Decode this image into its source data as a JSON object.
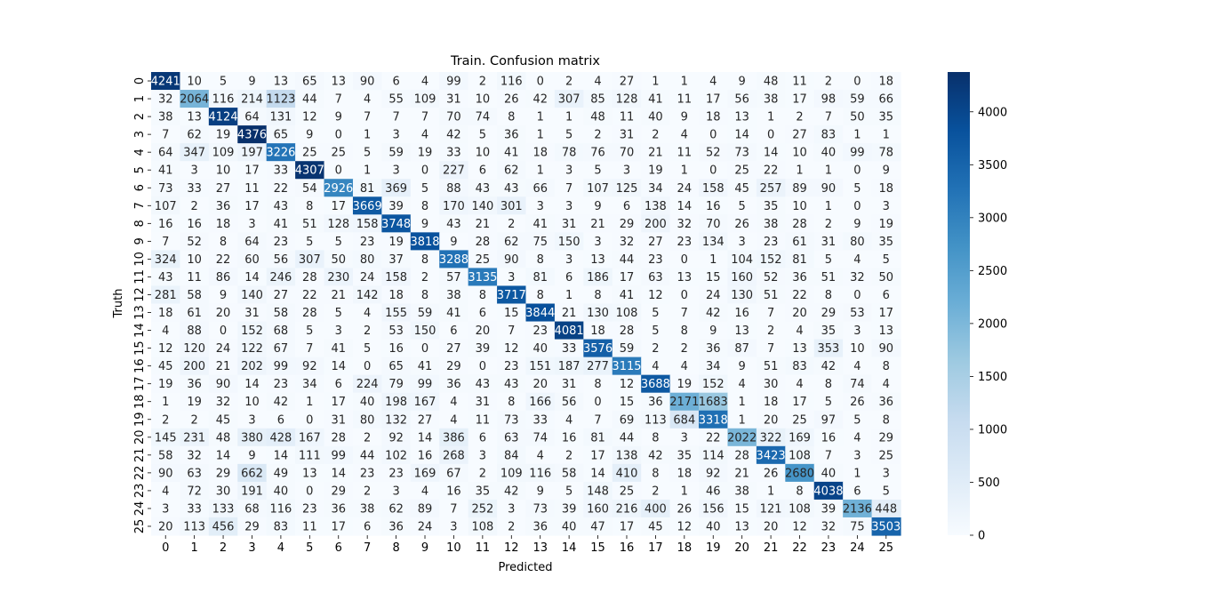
{
  "chart_data": {
    "type": "heatmap",
    "title": "Train. Confusion matrix",
    "xlabel": "Predicted",
    "ylabel": "Truth",
    "labels": [
      "0",
      "1",
      "2",
      "3",
      "4",
      "5",
      "6",
      "7",
      "8",
      "9",
      "10",
      "11",
      "12",
      "13",
      "14",
      "15",
      "16",
      "17",
      "18",
      "19",
      "20",
      "21",
      "22",
      "23",
      "24",
      "25"
    ],
    "colormap": "Blues",
    "vmin": 0,
    "vmax": 4376,
    "colorbar_ticks": [
      "0",
      "500",
      "1000",
      "1500",
      "2000",
      "2500",
      "3000",
      "3500",
      "4000"
    ],
    "matrix": [
      [
        4241,
        10,
        5,
        9,
        13,
        65,
        13,
        90,
        6,
        4,
        99,
        2,
        116,
        0,
        2,
        4,
        27,
        1,
        1,
        4,
        9,
        48,
        11,
        2,
        0,
        18
      ],
      [
        32,
        2064,
        116,
        214,
        1123,
        44,
        7,
        4,
        55,
        109,
        31,
        10,
        26,
        42,
        307,
        85,
        128,
        41,
        11,
        17,
        56,
        38,
        17,
        98,
        59,
        66
      ],
      [
        38,
        13,
        4124,
        64,
        131,
        12,
        9,
        7,
        7,
        7,
        70,
        74,
        8,
        1,
        1,
        48,
        11,
        40,
        9,
        18,
        13,
        1,
        2,
        7,
        50,
        35
      ],
      [
        7,
        62,
        19,
        4376,
        65,
        9,
        0,
        1,
        3,
        4,
        42,
        5,
        36,
        1,
        5,
        2,
        31,
        2,
        4,
        0,
        14,
        0,
        27,
        83,
        1,
        1
      ],
      [
        64,
        347,
        109,
        197,
        3226,
        25,
        25,
        5,
        59,
        19,
        33,
        10,
        41,
        18,
        78,
        76,
        70,
        21,
        11,
        52,
        73,
        14,
        10,
        40,
        99,
        78
      ],
      [
        41,
        3,
        10,
        17,
        33,
        4307,
        0,
        1,
        3,
        0,
        227,
        6,
        62,
        1,
        3,
        5,
        3,
        19,
        1,
        0,
        25,
        22,
        1,
        1,
        0,
        9
      ],
      [
        73,
        33,
        27,
        11,
        22,
        54,
        2926,
        81,
        369,
        5,
        88,
        43,
        43,
        66,
        7,
        107,
        125,
        34,
        24,
        158,
        45,
        257,
        89,
        90,
        5,
        18
      ],
      [
        107,
        2,
        36,
        17,
        43,
        8,
        17,
        3669,
        39,
        8,
        170,
        140,
        301,
        3,
        3,
        9,
        6,
        138,
        14,
        16,
        5,
        35,
        10,
        1,
        0,
        3
      ],
      [
        16,
        16,
        18,
        3,
        41,
        51,
        128,
        158,
        3748,
        9,
        43,
        21,
        2,
        41,
        31,
        21,
        29,
        200,
        32,
        70,
        26,
        38,
        28,
        2,
        9,
        19
      ],
      [
        7,
        52,
        8,
        64,
        23,
        5,
        5,
        23,
        19,
        3818,
        9,
        28,
        62,
        75,
        150,
        3,
        32,
        27,
        23,
        134,
        3,
        23,
        61,
        31,
        80,
        35
      ],
      [
        324,
        10,
        22,
        60,
        56,
        307,
        50,
        80,
        37,
        8,
        3288,
        25,
        90,
        8,
        3,
        13,
        44,
        23,
        0,
        1,
        104,
        152,
        81,
        5,
        4,
        5
      ],
      [
        43,
        11,
        86,
        14,
        246,
        28,
        230,
        24,
        158,
        2,
        57,
        3135,
        3,
        81,
        6,
        186,
        17,
        63,
        13,
        15,
        160,
        52,
        36,
        51,
        32,
        50
      ],
      [
        281,
        58,
        9,
        140,
        27,
        22,
        21,
        142,
        18,
        8,
        38,
        8,
        3717,
        8,
        1,
        8,
        41,
        12,
        0,
        24,
        130,
        51,
        22,
        8,
        0,
        6
      ],
      [
        18,
        61,
        20,
        31,
        58,
        28,
        5,
        4,
        155,
        59,
        41,
        6,
        15,
        3844,
        21,
        130,
        108,
        5,
        7,
        42,
        16,
        7,
        20,
        29,
        53,
        17
      ],
      [
        4,
        88,
        0,
        152,
        68,
        5,
        3,
        2,
        53,
        150,
        6,
        20,
        7,
        23,
        4081,
        18,
        28,
        5,
        8,
        9,
        13,
        2,
        4,
        35,
        3,
        13
      ],
      [
        12,
        120,
        24,
        122,
        67,
        7,
        41,
        5,
        16,
        0,
        27,
        39,
        12,
        40,
        33,
        3576,
        59,
        2,
        2,
        36,
        87,
        7,
        13,
        353,
        10,
        90
      ],
      [
        45,
        200,
        21,
        202,
        99,
        92,
        14,
        0,
        65,
        41,
        29,
        0,
        23,
        151,
        187,
        277,
        3115,
        4,
        4,
        34,
        9,
        51,
        83,
        42,
        4,
        8
      ],
      [
        19,
        36,
        90,
        14,
        23,
        34,
        6,
        224,
        79,
        99,
        36,
        43,
        43,
        20,
        31,
        8,
        12,
        3688,
        19,
        152,
        4,
        30,
        4,
        8,
        74,
        4
      ],
      [
        1,
        19,
        32,
        10,
        42,
        1,
        17,
        40,
        198,
        167,
        4,
        31,
        8,
        166,
        56,
        0,
        15,
        36,
        2171,
        1683,
        1,
        18,
        17,
        5,
        26,
        36
      ],
      [
        2,
        2,
        45,
        3,
        6,
        0,
        31,
        80,
        132,
        27,
        4,
        11,
        73,
        33,
        4,
        7,
        69,
        113,
        684,
        3318,
        1,
        20,
        25,
        97,
        5,
        8
      ],
      [
        145,
        231,
        48,
        380,
        428,
        167,
        28,
        2,
        92,
        14,
        386,
        6,
        63,
        74,
        16,
        81,
        44,
        8,
        3,
        22,
        2022,
        322,
        169,
        16,
        4,
        29
      ],
      [
        58,
        32,
        14,
        9,
        14,
        111,
        99,
        44,
        102,
        16,
        268,
        3,
        84,
        4,
        2,
        17,
        138,
        42,
        35,
        114,
        28,
        3423,
        108,
        7,
        3,
        25
      ],
      [
        90,
        63,
        29,
        662,
        49,
        13,
        14,
        23,
        23,
        169,
        67,
        2,
        109,
        116,
        58,
        14,
        410,
        8,
        18,
        92,
        21,
        26,
        2680,
        40,
        1,
        3
      ],
      [
        4,
        72,
        30,
        191,
        40,
        0,
        29,
        2,
        3,
        4,
        16,
        35,
        42,
        9,
        5,
        148,
        25,
        2,
        1,
        46,
        38,
        1,
        8,
        4038,
        6,
        5
      ],
      [
        3,
        33,
        133,
        68,
        116,
        23,
        36,
        38,
        62,
        89,
        7,
        252,
        3,
        73,
        39,
        160,
        216,
        400,
        26,
        156,
        15,
        121,
        108,
        39,
        2136,
        448
      ],
      [
        20,
        113,
        456,
        29,
        83,
        11,
        17,
        6,
        36,
        24,
        3,
        108,
        2,
        36,
        40,
        47,
        17,
        45,
        12,
        40,
        13,
        20,
        12,
        32,
        75,
        3503
      ]
    ]
  }
}
